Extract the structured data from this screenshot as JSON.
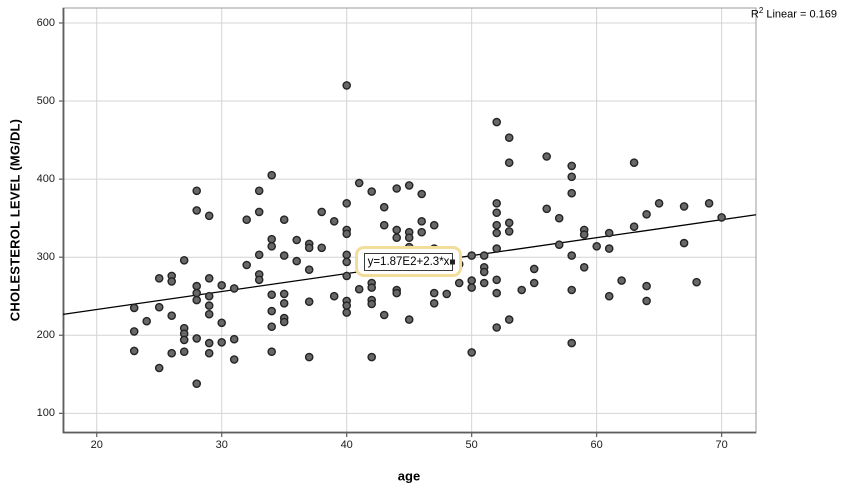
{
  "chart_data": {
    "type": "scatter",
    "title": "",
    "xlabel": "age",
    "ylabel": "CHOLESTEROL LEVEL (MG/DL)",
    "annotation": {
      "prefix": "R",
      "sup": "2",
      "rest": " Linear = 0.169"
    },
    "equation_label": "y=1.87E2+2.3*x",
    "x_ticks": [
      20,
      30,
      40,
      50,
      60,
      70
    ],
    "y_ticks": [
      100,
      200,
      300,
      400,
      500,
      600
    ],
    "xlim": [
      17.3,
      72.75
    ],
    "ylim": [
      74.8,
      619.2
    ],
    "grid": true,
    "legend_position": "none",
    "regression": {
      "intercept": 187,
      "slope": 2.3,
      "r_squared": 0.169
    },
    "points": [
      [
        23,
        235
      ],
      [
        23,
        205
      ],
      [
        23,
        180
      ],
      [
        24,
        218
      ],
      [
        25,
        273
      ],
      [
        25,
        236
      ],
      [
        25,
        158
      ],
      [
        26,
        276
      ],
      [
        26,
        269
      ],
      [
        26,
        225
      ],
      [
        26,
        177
      ],
      [
        27,
        296
      ],
      [
        27,
        209
      ],
      [
        27,
        202
      ],
      [
        27,
        194
      ],
      [
        27,
        179
      ],
      [
        28,
        385
      ],
      [
        28,
        360
      ],
      [
        28,
        263
      ],
      [
        28,
        254
      ],
      [
        28,
        245
      ],
      [
        28,
        196
      ],
      [
        28,
        138
      ],
      [
        29,
        353
      ],
      [
        29,
        273
      ],
      [
        29,
        250
      ],
      [
        29,
        238
      ],
      [
        29,
        227
      ],
      [
        29,
        190
      ],
      [
        29,
        177
      ],
      [
        30,
        264
      ],
      [
        30,
        216
      ],
      [
        30,
        191
      ],
      [
        31,
        260
      ],
      [
        31,
        195
      ],
      [
        31,
        169
      ],
      [
        32,
        348
      ],
      [
        32,
        290
      ],
      [
        33,
        385
      ],
      [
        33,
        358
      ],
      [
        33,
        303
      ],
      [
        33,
        278
      ],
      [
        33,
        271
      ],
      [
        34,
        405
      ],
      [
        34,
        323
      ],
      [
        34,
        314
      ],
      [
        34,
        252
      ],
      [
        34,
        231
      ],
      [
        34,
        211
      ],
      [
        34,
        179
      ],
      [
        35,
        348
      ],
      [
        35,
        302
      ],
      [
        35,
        253
      ],
      [
        35,
        241
      ],
      [
        35,
        222
      ],
      [
        35,
        217
      ],
      [
        36,
        322
      ],
      [
        36,
        295
      ],
      [
        37,
        317
      ],
      [
        37,
        312
      ],
      [
        37,
        284
      ],
      [
        37,
        243
      ],
      [
        37,
        172
      ],
      [
        38,
        358
      ],
      [
        38,
        312
      ],
      [
        39,
        346
      ],
      [
        39,
        250
      ],
      [
        40,
        520
      ],
      [
        40,
        369
      ],
      [
        40,
        335
      ],
      [
        40,
        330
      ],
      [
        40,
        303
      ],
      [
        40,
        294
      ],
      [
        40,
        276
      ],
      [
        40,
        244
      ],
      [
        40,
        238
      ],
      [
        40,
        229
      ],
      [
        41,
        395
      ],
      [
        41,
        259
      ],
      [
        42,
        384
      ],
      [
        42,
        267
      ],
      [
        42,
        261
      ],
      [
        42,
        245
      ],
      [
        42,
        240
      ],
      [
        42,
        172
      ],
      [
        43,
        364
      ],
      [
        43,
        341
      ],
      [
        43,
        226
      ],
      [
        44,
        388
      ],
      [
        44,
        335
      ],
      [
        44,
        325
      ],
      [
        44,
        258
      ],
      [
        44,
        254
      ],
      [
        45,
        392
      ],
      [
        45,
        332
      ],
      [
        45,
        325
      ],
      [
        45,
        313
      ],
      [
        45,
        220
      ],
      [
        46,
        381
      ],
      [
        46,
        346
      ],
      [
        46,
        332
      ],
      [
        47,
        341
      ],
      [
        47,
        311
      ],
      [
        47,
        254
      ],
      [
        47,
        241
      ],
      [
        48,
        253
      ],
      [
        49,
        291
      ],
      [
        49,
        267
      ],
      [
        50,
        302
      ],
      [
        50,
        270
      ],
      [
        50,
        261
      ],
      [
        50,
        178
      ],
      [
        51,
        302
      ],
      [
        51,
        287
      ],
      [
        51,
        281
      ],
      [
        51,
        267
      ],
      [
        52,
        473
      ],
      [
        52,
        369
      ],
      [
        52,
        357
      ],
      [
        52,
        341
      ],
      [
        52,
        331
      ],
      [
        52,
        311
      ],
      [
        52,
        271
      ],
      [
        52,
        254
      ],
      [
        52,
        210
      ],
      [
        53,
        453
      ],
      [
        53,
        421
      ],
      [
        53,
        344
      ],
      [
        53,
        333
      ],
      [
        53,
        220
      ],
      [
        54,
        258
      ],
      [
        55,
        285
      ],
      [
        55,
        267
      ],
      [
        56,
        429
      ],
      [
        56,
        362
      ],
      [
        57,
        350
      ],
      [
        57,
        316
      ],
      [
        58,
        417
      ],
      [
        58,
        403
      ],
      [
        58,
        382
      ],
      [
        58,
        302
      ],
      [
        58,
        258
      ],
      [
        58,
        190
      ],
      [
        59,
        335
      ],
      [
        59,
        329
      ],
      [
        59,
        287
      ],
      [
        60,
        314
      ],
      [
        61,
        331
      ],
      [
        61,
        311
      ],
      [
        61,
        250
      ],
      [
        62,
        270
      ],
      [
        63,
        421
      ],
      [
        63,
        339
      ],
      [
        64,
        355
      ],
      [
        64,
        263
      ],
      [
        64,
        244
      ],
      [
        65,
        369
      ],
      [
        67,
        365
      ],
      [
        67,
        318
      ],
      [
        68,
        268
      ],
      [
        69,
        369
      ],
      [
        70,
        351
      ]
    ],
    "colors": {
      "marker_fill": "#686868",
      "marker_stroke": "#242424",
      "gridline": "#d4d4d4",
      "frame": "#9b9b9b",
      "axis": "#5e5e5e",
      "regression_line": "#000000",
      "highlight_border": "#f2dd9a",
      "background": "#ffffff"
    }
  }
}
